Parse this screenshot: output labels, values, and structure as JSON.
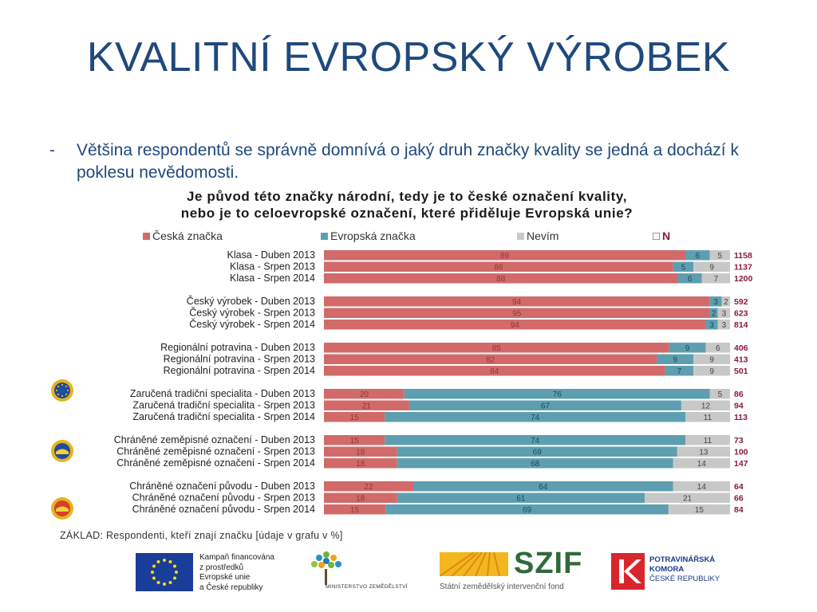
{
  "slide": {
    "title": "KVALITNÍ EVROPSKÝ VÝROBEK",
    "bullet_dash": "-",
    "bullet_text": "Většina respondentů se správně domnívá o jaký druh značky kvality se jedná a dochází k poklesu nevědomosti."
  },
  "chart_data": {
    "type": "bar",
    "orientation": "horizontal-stacked-100",
    "title_line1": "Je původ této značky národní, tedy je to české označení kvality,",
    "title_line2": "nebo je to celoevropské označení, které přiděluje Evropská unie?",
    "legend": [
      {
        "label": "Česká značka",
        "color": "#d26a6a"
      },
      {
        "label": "Evropská značka",
        "color": "#5d9fb0"
      },
      {
        "label": "Nevím",
        "color": "#c8c8c8"
      },
      {
        "label": "N",
        "color": "#ffffff"
      }
    ],
    "groups": [
      {
        "badge": "",
        "rows": [
          {
            "label": "Klasa - Duben 2013",
            "values": [
              89,
              6,
              5
            ],
            "n": "1158"
          },
          {
            "label": "Klasa - Srpen 2013",
            "values": [
              86,
              5,
              9
            ],
            "n": "1137"
          },
          {
            "label": "Klasa - Srpen 2014",
            "values": [
              88,
              6,
              7
            ],
            "n": "1200"
          }
        ]
      },
      {
        "badge": "",
        "rows": [
          {
            "label": "Český výrobek - Duben 2013",
            "values": [
              94,
              3,
              2
            ],
            "n": "592"
          },
          {
            "label": "Český výrobek - Srpen 2013",
            "values": [
              95,
              2,
              3
            ],
            "n": "623"
          },
          {
            "label": "Český výrobek - Srpen 2014",
            "values": [
              94,
              3,
              3
            ],
            "n": "814"
          }
        ]
      },
      {
        "badge": "",
        "rows": [
          {
            "label": "Regionální potravina - Duben 2013",
            "values": [
              85,
              9,
              6
            ],
            "n": "406"
          },
          {
            "label": "Regionální potravina - Srpen 2013",
            "values": [
              82,
              9,
              9
            ],
            "n": "413"
          },
          {
            "label": "Regionální potravina - Srpen 2014",
            "values": [
              84,
              7,
              9
            ],
            "n": "501"
          }
        ]
      },
      {
        "badge": "tsg",
        "rows": [
          {
            "label": "Zaručená tradiční specialita - Duben 2013",
            "values": [
              20,
              76,
              5
            ],
            "n": "86"
          },
          {
            "label": "Zaručená tradiční specialita - Srpen 2013",
            "values": [
              21,
              67,
              12
            ],
            "n": "94"
          },
          {
            "label": "Zaručená tradiční specialita - Srpen 2014",
            "values": [
              15,
              74,
              11
            ],
            "n": "113"
          }
        ]
      },
      {
        "badge": "pgi",
        "rows": [
          {
            "label": "Chráněné zeměpisné označení - Duben 2013",
            "values": [
              15,
              74,
              11
            ],
            "n": "73"
          },
          {
            "label": "Chráněné zeměpisné označení - Srpen 2013",
            "values": [
              18,
              69,
              13
            ],
            "n": "100"
          },
          {
            "label": "Chráněné zeměpisné označení - Srpen 2014",
            "values": [
              18,
              68,
              14
            ],
            "n": "147"
          }
        ]
      },
      {
        "badge": "pdo",
        "rows": [
          {
            "label": "Chráněné označení původu - Duben 2013",
            "values": [
              22,
              64,
              14
            ],
            "n": "64"
          },
          {
            "label": "Chráněné označení původu - Srpen 2013",
            "values": [
              18,
              61,
              21
            ],
            "n": "66"
          },
          {
            "label": "Chráněné označení původu - Srpen 2014",
            "values": [
              15,
              69,
              15
            ],
            "n": "84"
          }
        ]
      }
    ],
    "basis_note": "ZÁKLAD: Respondenti, kteří znají značku [údaje v grafu v %]"
  },
  "colors": {
    "title": "#1f497d",
    "czech": "#d26a6a",
    "european": "#5d9fb0",
    "dontknow": "#c8c8c8",
    "n_value": "#8b1a3a"
  },
  "footer": {
    "eu_text_line1": "Kampaň financována",
    "eu_text_line2": "z prostředků",
    "eu_text_line3": "Evropské unie",
    "eu_text_line4": "a České republiky",
    "ministry_text": "MINISTERSTVO ZEMĚDĚLSTVÍ",
    "szif_word": "SZIF",
    "szif_sub": "Státní zemědělský intervenční fond",
    "pk_line1": "POTRAVINÁŘSKÁ",
    "pk_line2": "KOMORA",
    "pk_line3": "ČESKÉ REPUBLIKY"
  }
}
